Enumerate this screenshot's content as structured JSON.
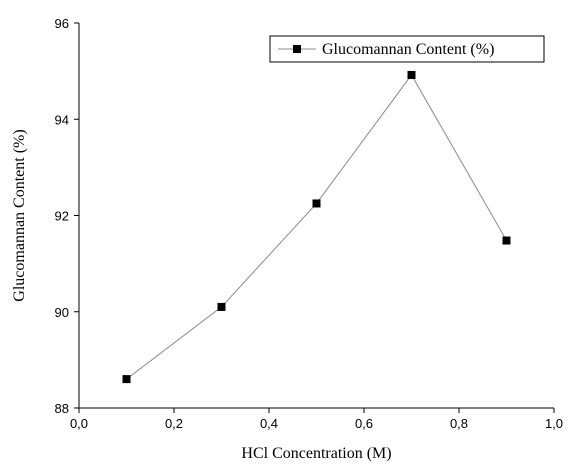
{
  "chart_data": {
    "type": "line",
    "title": "",
    "xlabel": "HCl Concentration (M)",
    "ylabel": "Glucomannan Content (%)",
    "xlim": [
      0.0,
      1.0
    ],
    "ylim": [
      88,
      96
    ],
    "x_ticks": [
      "0,0",
      "0,2",
      "0,4",
      "0,6",
      "0,8",
      "1,0"
    ],
    "y_ticks": [
      "88",
      "90",
      "92",
      "94",
      "96"
    ],
    "grid": false,
    "legend_position": "top-right",
    "series": [
      {
        "name": "Glucomannan Content (%)",
        "marker": "square",
        "color": "#000000",
        "line_color": "#8a8a8a",
        "x": [
          0.1,
          0.3,
          0.5,
          0.7,
          0.9
        ],
        "y": [
          88.6,
          90.1,
          92.25,
          94.92,
          91.48
        ]
      }
    ]
  }
}
